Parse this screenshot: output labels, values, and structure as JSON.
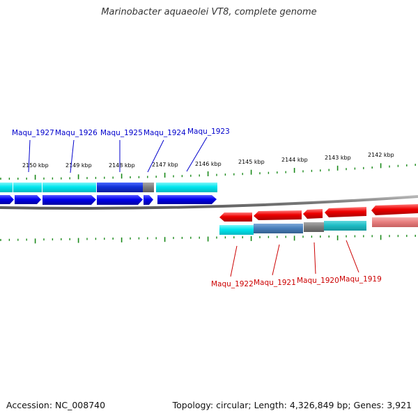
{
  "title": "Marinobacter aquaeolei VT8, complete genome",
  "footer": {
    "accession": "Accession: NC_008740",
    "topology": "Topology: circular; Length: 4,326,849 bp; Genes: 3,921"
  },
  "colors": {
    "forward_gene": "#0000ff",
    "forward_label": "#0000cc",
    "reverse_gene": "#ff0000",
    "reverse_label": "#cc0000",
    "cyan_track": "#00e0e8",
    "teal_track": "#20c0c8",
    "blue_track": "#1030d8",
    "steel_track": "#4a82c0",
    "gray_track": "#808080",
    "pink_track": "#e88080",
    "ticks": "#1a8a1a",
    "backbone": "#808080"
  },
  "ruler": {
    "labels": [
      "2150 kbp",
      "2149 kbp",
      "2148 kbp",
      "2147 kbp",
      "2146 kbp",
      "2145 kbp",
      "2144 kbp",
      "2143 kbp",
      "2142 kbp"
    ]
  },
  "genes_forward": [
    {
      "name": "Maqu_1927"
    },
    {
      "name": "Maqu_1926"
    },
    {
      "name": "Maqu_1925"
    },
    {
      "name": "Maqu_1924"
    },
    {
      "name": "Maqu_1923"
    }
  ],
  "genes_reverse": [
    {
      "name": "Maqu_1922"
    },
    {
      "name": "Maqu_1921"
    },
    {
      "name": "Maqu_1920"
    },
    {
      "name": "Maqu_1919"
    }
  ]
}
